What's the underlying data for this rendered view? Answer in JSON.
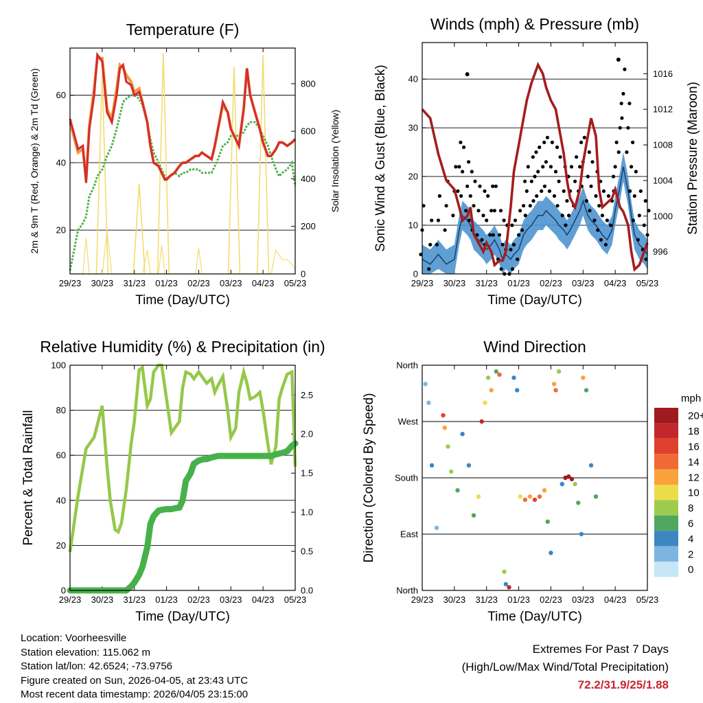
{
  "colors": {
    "temp_2m": "#d42e2e",
    "temp_9m": "#f39a3a",
    "dewpoint": "#4eb047",
    "solar": "#f2dc6e",
    "wind": "#4e95d0",
    "gust": "#000000",
    "pressure": "#a51d1d",
    "rh": "#95c84a",
    "precip": "#47b04b",
    "extremes": "#c8262e"
  },
  "x_ticks": [
    "29/23",
    "30/23",
    "31/23",
    "01/23",
    "02/23",
    "03/23",
    "04/23",
    "05/23"
  ],
  "x_label": "Time (Day/UTC)",
  "chart_data": [
    {
      "id": "temperature",
      "type": "line",
      "title": "Temperature (F)",
      "xlabel": "Time (Day/UTC)",
      "ylabel": "2m & 9m T (Red, Orange) & 2m Td (Green)",
      "y2label": "Solar Insolation (Yellow)",
      "ylim": [
        7,
        74
      ],
      "yticks": [
        "20",
        "40",
        "60"
      ],
      "y2lim": [
        0,
        950
      ],
      "y2ticks": [
        "0",
        "200",
        "400",
        "600",
        "800"
      ],
      "x": [
        0,
        0.25,
        0.4,
        0.5,
        0.6,
        0.75,
        0.85,
        1.0,
        1.15,
        1.3,
        1.45,
        1.55,
        1.65,
        1.75,
        1.9,
        2.0,
        2.15,
        2.25,
        2.4,
        2.5,
        2.6,
        2.75,
        2.85,
        2.95,
        3.0,
        3.1,
        3.25,
        3.4,
        3.5,
        3.6,
        3.75,
        3.9,
        4.0,
        4.1,
        4.25,
        4.4,
        4.5,
        4.6,
        4.75,
        4.9,
        5.0,
        5.25,
        5.4,
        5.5,
        5.6,
        5.75,
        5.9,
        6.0,
        6.15,
        6.25,
        6.4,
        6.5,
        6.6,
        6.75,
        6.9,
        7.0
      ],
      "series": [
        {
          "name": "2m T",
          "values": [
            53,
            44,
            45,
            34,
            50,
            60,
            72,
            70,
            55,
            52,
            60,
            68,
            69,
            64,
            63,
            60,
            61,
            58,
            52,
            45,
            40,
            39,
            37,
            35,
            35,
            36,
            37,
            39,
            40,
            40,
            41,
            42,
            42,
            43,
            42,
            41,
            45,
            50,
            58,
            55,
            50,
            45,
            56,
            68,
            60,
            55,
            50,
            46,
            42,
            42,
            44,
            46,
            46,
            45,
            46,
            47
          ]
        },
        {
          "name": "9m T",
          "values": [
            52,
            43,
            44,
            35,
            51,
            62,
            71,
            71,
            56,
            53,
            62,
            69,
            68,
            66,
            64,
            61,
            62,
            58,
            52,
            45,
            40,
            39,
            37,
            35,
            35,
            36,
            37,
            39,
            40,
            40,
            41,
            42,
            42,
            43,
            42,
            41,
            45,
            50,
            57,
            55,
            50,
            45,
            56,
            68,
            60,
            55,
            50,
            46,
            42,
            42,
            44,
            46,
            46,
            45,
            46,
            47
          ]
        },
        {
          "name": "2m Td",
          "values": [
            8,
            20,
            22,
            24,
            30,
            33,
            36,
            38,
            42,
            45,
            50,
            54,
            58,
            59,
            60,
            60,
            59,
            57,
            52,
            47,
            43,
            40,
            38,
            36,
            35,
            36,
            37,
            36,
            37,
            37,
            38,
            38,
            38,
            37,
            37,
            37,
            39,
            41,
            45,
            46,
            48,
            48,
            49,
            51,
            52,
            52,
            50,
            48,
            45,
            42,
            38,
            36,
            37,
            38,
            40,
            33
          ]
        },
        {
          "name": "Solar Insolation",
          "values": [
            0,
            0,
            0,
            150,
            0,
            0,
            0,
            0,
            180,
            0,
            0,
            0,
            0,
            0,
            0,
            0,
            0,
            0,
            100,
            0,
            0,
            0,
            120,
            0,
            0,
            0,
            0,
            0,
            0,
            0,
            0,
            0,
            110,
            0,
            0,
            0,
            0,
            0,
            0,
            0,
            0,
            0,
            0,
            0,
            0,
            0,
            0,
            0,
            0,
            0,
            100,
            80,
            60,
            60,
            40,
            20
          ]
        }
      ],
      "solar_peaks": [
        {
          "x": 1.0,
          "value": 840
        },
        {
          "x": 2.15,
          "value": 380
        },
        {
          "x": 2.9,
          "value": 930
        },
        {
          "x": 5.1,
          "value": 870
        },
        {
          "x": 6.0,
          "value": 920
        }
      ]
    },
    {
      "id": "winds",
      "type": "line",
      "title": "Winds (mph) & Pressure (mb)",
      "xlabel": "Time (Day/UTC)",
      "ylabel": "Sonic Wind & Gust (Blue, Black)",
      "y2label": "Station Pressure (Maroon)",
      "ylim": [
        0,
        47.5
      ],
      "yticks": [
        "0",
        "10",
        "20",
        "30",
        "40"
      ],
      "y2lim": [
        993.5,
        1019.5
      ],
      "y2ticks": [
        "996",
        "1000",
        "1004",
        "1008",
        "1012",
        "1016"
      ],
      "x": [
        0,
        0.25,
        0.5,
        0.75,
        1.0,
        1.15,
        1.25,
        1.4,
        1.5,
        1.6,
        1.75,
        1.9,
        2.0,
        2.15,
        2.25,
        2.4,
        2.5,
        2.6,
        2.75,
        2.85,
        3.0,
        3.15,
        3.25,
        3.4,
        3.5,
        3.6,
        3.75,
        3.85,
        4.0,
        4.15,
        4.25,
        4.4,
        4.5,
        4.6,
        4.75,
        4.9,
        5.0,
        5.15,
        5.25,
        5.4,
        5.5,
        5.6,
        5.75,
        5.9,
        6.0,
        6.15,
        6.25,
        6.4,
        6.5,
        6.6,
        6.75,
        6.9,
        7.0
      ],
      "series": [
        {
          "name": "Sonic Wind",
          "values": [
            3,
            2,
            4,
            2,
            3,
            9,
            12,
            11,
            10,
            8,
            7,
            6,
            5,
            6,
            7,
            5,
            3,
            4,
            3,
            4,
            5,
            8,
            9,
            10,
            11,
            12,
            12,
            13,
            12,
            11,
            10,
            9,
            8,
            9,
            11,
            13,
            15,
            12,
            11,
            10,
            9,
            8,
            7,
            9,
            13,
            18,
            22,
            17,
            12,
            8,
            6,
            5,
            4
          ]
        },
        {
          "name": "Gust",
          "values": [
            9,
            6,
            11,
            14,
            17,
            22,
            21,
            18,
            16,
            14,
            13,
            12,
            11,
            13,
            13,
            8,
            6,
            5,
            5,
            6,
            8,
            14,
            17,
            19,
            20,
            21,
            22,
            23,
            22,
            21,
            19,
            17,
            15,
            17,
            19,
            22,
            23,
            20,
            18,
            16,
            14,
            12,
            11,
            15,
            22,
            30,
            37,
            30,
            22,
            16,
            12,
            10,
            8
          ]
        },
        {
          "name": "Station Pressure",
          "values": [
            1012,
            1011,
            1007,
            1004,
            1003,
            1001,
            999.5,
            1000,
            1001,
            998,
            997,
            996,
            997,
            996,
            994.5,
            995,
            995,
            996,
            1001,
            1005,
            1008,
            1011,
            1013,
            1015,
            1016,
            1017,
            1016,
            1014.5,
            1013,
            1012,
            1010,
            1007,
            1004,
            1002,
            1001,
            1003,
            1006,
            1009,
            1011,
            1009,
            1003,
            1001,
            1001.5,
            1002,
            1003,
            1001,
            1000.5,
            999,
            996,
            994,
            994.5,
            996,
            997
          ]
        }
      ]
    },
    {
      "id": "humidity",
      "type": "line",
      "title": "Relative Humidity (%) & Precipitation (in)",
      "xlabel": "Time (Day/UTC)",
      "ylabel": "Percent & Total Rainfall",
      "ylim": [
        0,
        100
      ],
      "yticks": [
        "0",
        "20",
        "40",
        "60",
        "80",
        "100"
      ],
      "y2lim": [
        0,
        2.88
      ],
      "y2ticks": [
        "0.0",
        "0.5",
        "1.0",
        "1.5",
        "2.0",
        "2.5"
      ],
      "x": [
        0,
        0.25,
        0.5,
        0.75,
        1.0,
        1.15,
        1.25,
        1.4,
        1.5,
        1.6,
        1.75,
        1.9,
        2.0,
        2.15,
        2.25,
        2.4,
        2.5,
        2.6,
        2.75,
        2.85,
        3.0,
        3.15,
        3.25,
        3.4,
        3.5,
        3.6,
        3.75,
        3.85,
        4.0,
        4.15,
        4.25,
        4.4,
        4.5,
        4.6,
        4.75,
        4.9,
        5.0,
        5.15,
        5.25,
        5.4,
        5.5,
        5.6,
        5.75,
        5.9,
        6.0,
        6.15,
        6.25,
        6.4,
        6.5,
        6.6,
        6.75,
        6.9,
        7.0
      ],
      "series": [
        {
          "name": "Relative Humidity",
          "values": [
            17,
            42,
            63,
            68,
            82,
            55,
            40,
            27,
            26,
            30,
            45,
            65,
            75,
            98,
            99,
            82,
            85,
            97,
            100,
            100,
            85,
            70,
            72,
            75,
            90,
            97,
            96,
            94,
            97,
            94,
            92,
            94,
            88,
            91,
            95,
            80,
            68,
            72,
            88,
            97,
            92,
            85,
            86,
            88,
            80,
            65,
            56,
            64,
            85,
            90,
            96,
            97,
            55
          ]
        },
        {
          "name": "Total Precipitation",
          "values": [
            0,
            0,
            0,
            0,
            0,
            0,
            0,
            0,
            0,
            0,
            0,
            0.05,
            0.1,
            0.2,
            0.3,
            0.55,
            0.85,
            0.95,
            1.02,
            1.03,
            1.04,
            1.04,
            1.05,
            1.06,
            1.15,
            1.4,
            1.5,
            1.62,
            1.66,
            1.68,
            1.68,
            1.7,
            1.71,
            1.72,
            1.72,
            1.72,
            1.72,
            1.72,
            1.72,
            1.72,
            1.72,
            1.72,
            1.72,
            1.72,
            1.72,
            1.72,
            1.72,
            1.74,
            1.75,
            1.76,
            1.78,
            1.85,
            1.88
          ]
        }
      ]
    },
    {
      "id": "direction",
      "type": "scatter",
      "title": "Wind Direction",
      "xlabel": "Time (Day/UTC)",
      "ylabel": "Direction (Colored By Speed)",
      "yticks": [
        "North",
        "East",
        "South",
        "West",
        "North"
      ],
      "ylim": [
        0,
        360
      ],
      "colorbar_title": "mph",
      "colorbar_labels": [
        "20+",
        "18",
        "16",
        "14",
        "12",
        "10",
        "8",
        "6",
        "4",
        "2",
        "0"
      ],
      "colorbar_colors": [
        "#9e1b20",
        "#c3272b",
        "#e0412f",
        "#ef6a34",
        "#f9a23d",
        "#eddc4a",
        "#9ccc4e",
        "#4fa760",
        "#3c86c1",
        "#7cb6e0",
        "#c6e6f5"
      ],
      "points": [
        {
          "x": 0.1,
          "dir": 330,
          "speed": 1
        },
        {
          "x": 0.2,
          "dir": 300,
          "speed": 2
        },
        {
          "x": 0.3,
          "dir": 200,
          "speed": 3
        },
        {
          "x": 0.45,
          "dir": 100,
          "speed": 2
        },
        {
          "x": 0.65,
          "dir": 280,
          "speed": 16
        },
        {
          "x": 0.7,
          "dir": 260,
          "speed": 12
        },
        {
          "x": 0.8,
          "dir": 230,
          "speed": 8
        },
        {
          "x": 0.9,
          "dir": 190,
          "speed": 7
        },
        {
          "x": 1.1,
          "dir": 160,
          "speed": 5
        },
        {
          "x": 1.25,
          "dir": 250,
          "speed": 4
        },
        {
          "x": 1.45,
          "dir": 200,
          "speed": 4
        },
        {
          "x": 1.6,
          "dir": 120,
          "speed": 5
        },
        {
          "x": 1.75,
          "dir": 150,
          "speed": 9
        },
        {
          "x": 1.85,
          "dir": 270,
          "speed": 17
        },
        {
          "x": 1.95,
          "dir": 300,
          "speed": 10
        },
        {
          "x": 2.05,
          "dir": 340,
          "speed": 8
        },
        {
          "x": 2.15,
          "dir": 320,
          "speed": 12
        },
        {
          "x": 2.3,
          "dir": 350,
          "speed": 6
        },
        {
          "x": 2.4,
          "dir": 345,
          "speed": 13
        },
        {
          "x": 2.55,
          "dir": 30,
          "speed": 8
        },
        {
          "x": 2.6,
          "dir": 10,
          "speed": 3
        },
        {
          "x": 2.7,
          "dir": 5,
          "speed": 18
        },
        {
          "x": 2.85,
          "dir": 340,
          "speed": 4
        },
        {
          "x": 2.95,
          "dir": 320,
          "speed": 3
        },
        {
          "x": 3.05,
          "dir": 150,
          "speed": 10
        },
        {
          "x": 3.2,
          "dir": 145,
          "speed": 14
        },
        {
          "x": 3.35,
          "dir": 150,
          "speed": 12
        },
        {
          "x": 3.5,
          "dir": 145,
          "speed": 15
        },
        {
          "x": 3.65,
          "dir": 150,
          "speed": 13
        },
        {
          "x": 3.8,
          "dir": 160,
          "speed": 11
        },
        {
          "x": 3.9,
          "dir": 110,
          "speed": 6
        },
        {
          "x": 4.0,
          "dir": 60,
          "speed": 4
        },
        {
          "x": 4.1,
          "dir": 330,
          "speed": 12
        },
        {
          "x": 4.15,
          "dir": 320,
          "speed": 14
        },
        {
          "x": 4.25,
          "dir": 350,
          "speed": 8
        },
        {
          "x": 4.35,
          "dir": 170,
          "speed": 4
        },
        {
          "x": 4.45,
          "dir": 180,
          "speed": 19
        },
        {
          "x": 4.55,
          "dir": 182,
          "speed": 21
        },
        {
          "x": 4.65,
          "dir": 178,
          "speed": 22
        },
        {
          "x": 4.75,
          "dir": 170,
          "speed": 8
        },
        {
          "x": 4.85,
          "dir": 140,
          "speed": 6
        },
        {
          "x": 4.95,
          "dir": 90,
          "speed": 3
        },
        {
          "x": 5.0,
          "dir": 340,
          "speed": 11
        },
        {
          "x": 5.1,
          "dir": 320,
          "speed": 5
        },
        {
          "x": 5.25,
          "dir": 200,
          "speed": 3
        },
        {
          "x": 5.4,
          "dir": 150,
          "speed": 5
        }
      ]
    }
  ],
  "info": {
    "location": "Location: Voorheesville",
    "elevation": "Station elevation: 115.062 m",
    "latlon": "Station lat/lon: 42.6524; -73.9756",
    "created": "Figure created on Sun, 2026-04-05, at 23:43 UTC",
    "recent": "Most recent data timestamp: 2026/04/05 23:15:00"
  },
  "extremes": {
    "title": "Extremes For Past 7 Days",
    "subtitle": "(High/Low/Max Wind/Total Precipitation)",
    "values": "72.2/31.9/25/1.88"
  }
}
